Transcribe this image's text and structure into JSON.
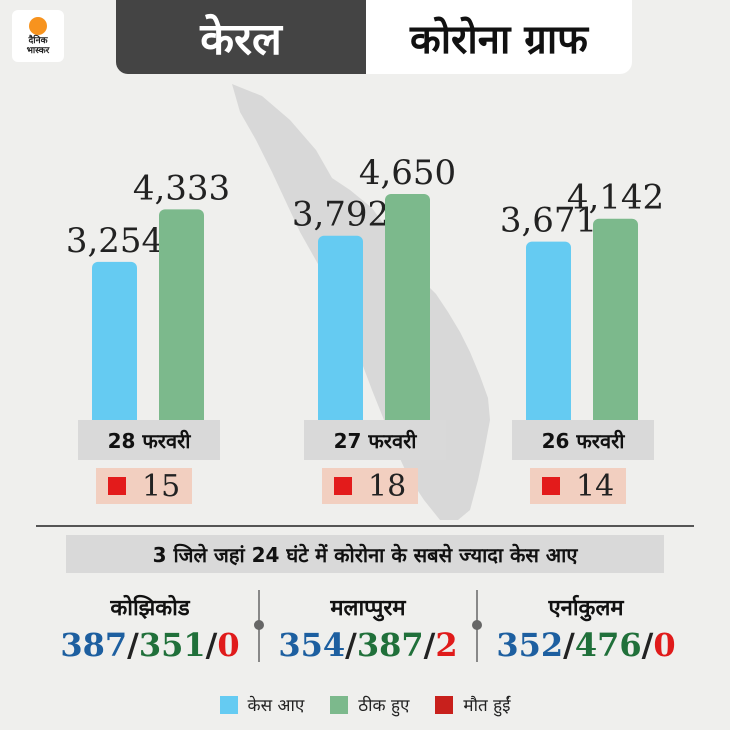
{
  "logo": {
    "line1": "दैनिक",
    "line2": "भास्कर"
  },
  "header": {
    "title_left": "केरल",
    "title_right": "कोरोना ग्राफ"
  },
  "colors": {
    "cases": "#65cbf2",
    "recovered": "#7cb98c",
    "deaths": "#e31b1b"
  },
  "chart_data": {
    "type": "bar",
    "categories": [
      "28 फरवरी",
      "27 फरवरी",
      "26 फरवरी"
    ],
    "series": [
      {
        "name": "केस आए",
        "values": [
          3254,
          3792,
          3671
        ],
        "labels": [
          "3,254",
          "3,792",
          "3,671"
        ]
      },
      {
        "name": "ठीक हुए",
        "values": [
          4333,
          4650,
          4142
        ],
        "labels": [
          "4,333",
          "4,650",
          "4,142"
        ]
      }
    ],
    "deaths": [
      15,
      18,
      14
    ]
  },
  "districts_title": "3 जिले जहां 24 घंटे में कोरोना के सबसे ज्यादा केस आए",
  "districts": [
    {
      "name": "कोझिकोड",
      "cases": "387",
      "recovered": "351",
      "deaths": "0"
    },
    {
      "name": "मलाप्पुरम",
      "cases": "354",
      "recovered": "387",
      "deaths": "2"
    },
    {
      "name": "एर्नाकुलम",
      "cases": "352",
      "recovered": "476",
      "deaths": "0"
    }
  ],
  "legend": [
    {
      "label": "केस आए",
      "color": "#65cbf2"
    },
    {
      "label": "ठीक हुए",
      "color": "#7cb98c"
    },
    {
      "label": "मौत हुईं",
      "color": "#c8201c"
    }
  ]
}
